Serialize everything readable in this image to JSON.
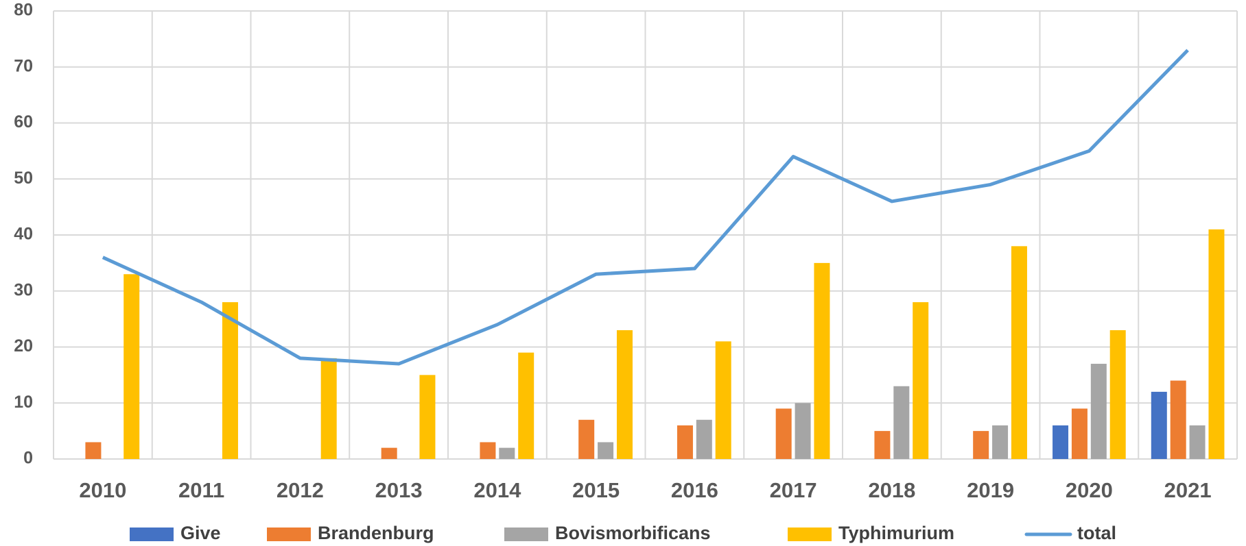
{
  "chart_data": {
    "type": "bar",
    "categories": [
      "2010",
      "2011",
      "2012",
      "2013",
      "2014",
      "2015",
      "2016",
      "2017",
      "2018",
      "2019",
      "2020",
      "2021"
    ],
    "series": [
      {
        "name": "Give",
        "color": "#4472c4",
        "values": [
          0,
          0,
          0,
          0,
          0,
          0,
          0,
          0,
          0,
          0,
          6,
          12
        ]
      },
      {
        "name": "Brandenburg",
        "color": "#ed7d31",
        "values": [
          3,
          0,
          0,
          2,
          3,
          7,
          6,
          9,
          5,
          5,
          9,
          14
        ]
      },
      {
        "name": "Bovismorbificans",
        "color": "#a5a5a5",
        "values": [
          0,
          0,
          0,
          0,
          2,
          3,
          7,
          10,
          13,
          6,
          17,
          6
        ]
      },
      {
        "name": "Typhimurium",
        "color": "#ffc000",
        "values": [
          33,
          28,
          18,
          15,
          19,
          23,
          21,
          35,
          28,
          38,
          23,
          41
        ]
      },
      {
        "name": "total",
        "color": "#5b9bd5",
        "type": "line",
        "values": [
          36,
          28,
          18,
          17,
          24,
          33,
          34,
          54,
          46,
          49,
          55,
          73
        ]
      }
    ],
    "ylim": [
      0,
      80
    ],
    "yticks": [
      0,
      10,
      20,
      30,
      40,
      50,
      60,
      70,
      80
    ],
    "grid": true,
    "legend": "bottom"
  }
}
